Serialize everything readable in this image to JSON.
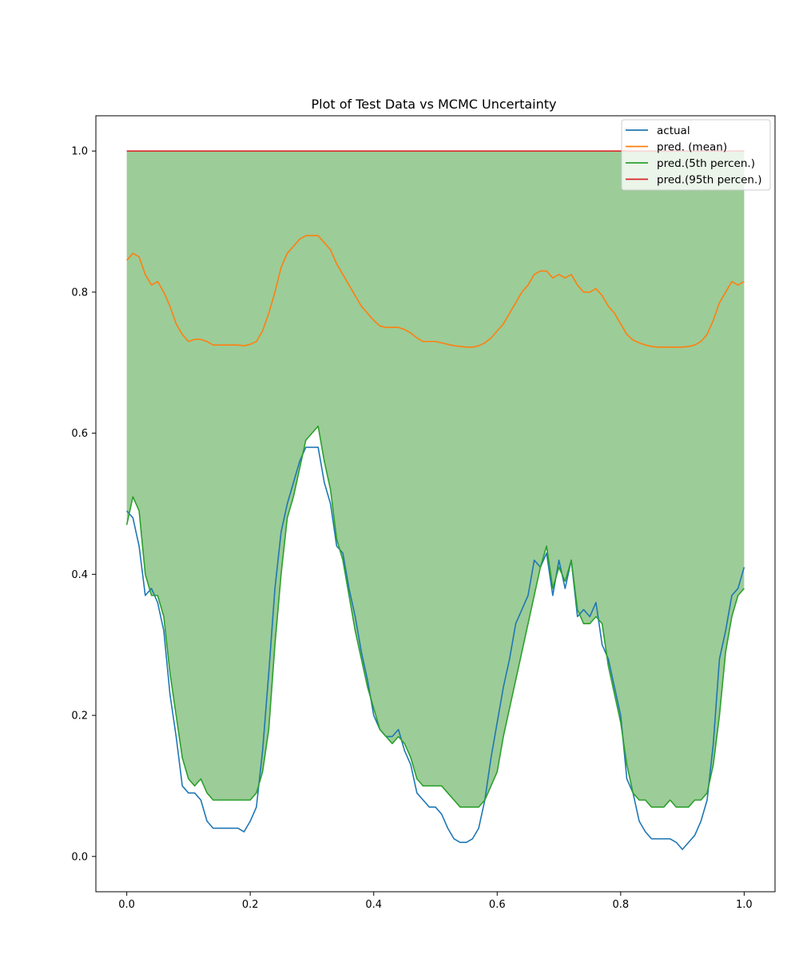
{
  "chart_data": {
    "type": "line",
    "title": "Plot of Test Data vs MCMC Uncertainty",
    "xlabel": "",
    "ylabel": "",
    "xlim": [
      -0.05,
      1.05
    ],
    "ylim": [
      -0.05,
      1.05
    ],
    "x_ticks": [
      0.0,
      0.2,
      0.4,
      0.6,
      0.8,
      1.0
    ],
    "y_ticks": [
      0.0,
      0.2,
      0.4,
      0.6,
      0.8,
      1.0
    ],
    "x_tick_labels": [
      "0.0",
      "0.2",
      "0.4",
      "0.6",
      "0.8",
      "1.0"
    ],
    "y_tick_labels": [
      "0.0",
      "0.2",
      "0.4",
      "0.6",
      "0.8",
      "1.0"
    ],
    "grid": false,
    "legend_position": "top-right",
    "fill_between": {
      "lower_series": "pred.(5th percen.)",
      "upper_series": "pred.(95th percen.)",
      "color": "#9ccc98"
    },
    "series": [
      {
        "name": "actual",
        "color": "#1f77b4",
        "x": [
          0.0,
          0.01,
          0.02,
          0.03,
          0.04,
          0.05,
          0.06,
          0.07,
          0.08,
          0.09,
          0.1,
          0.11,
          0.12,
          0.13,
          0.14,
          0.15,
          0.16,
          0.17,
          0.18,
          0.19,
          0.2,
          0.21,
          0.22,
          0.23,
          0.24,
          0.25,
          0.26,
          0.27,
          0.28,
          0.29,
          0.3,
          0.31,
          0.32,
          0.33,
          0.34,
          0.35,
          0.36,
          0.37,
          0.38,
          0.39,
          0.4,
          0.41,
          0.42,
          0.43,
          0.44,
          0.45,
          0.46,
          0.47,
          0.48,
          0.49,
          0.5,
          0.51,
          0.52,
          0.53,
          0.54,
          0.55,
          0.56,
          0.57,
          0.58,
          0.59,
          0.6,
          0.61,
          0.62,
          0.63,
          0.64,
          0.65,
          0.66,
          0.67,
          0.68,
          0.69,
          0.7,
          0.71,
          0.72,
          0.73,
          0.74,
          0.75,
          0.76,
          0.77,
          0.78,
          0.79,
          0.8,
          0.81,
          0.82,
          0.83,
          0.84,
          0.85,
          0.86,
          0.87,
          0.88,
          0.89,
          0.9,
          0.91,
          0.92,
          0.93,
          0.94,
          0.95,
          0.96,
          0.97,
          0.98,
          0.99,
          1.0
        ],
        "y": [
          0.49,
          0.48,
          0.44,
          0.37,
          0.38,
          0.36,
          0.32,
          0.23,
          0.17,
          0.1,
          0.09,
          0.09,
          0.08,
          0.05,
          0.04,
          0.04,
          0.04,
          0.04,
          0.04,
          0.035,
          0.05,
          0.07,
          0.15,
          0.26,
          0.38,
          0.46,
          0.5,
          0.53,
          0.56,
          0.58,
          0.58,
          0.58,
          0.53,
          0.5,
          0.44,
          0.43,
          0.38,
          0.34,
          0.29,
          0.25,
          0.2,
          0.18,
          0.17,
          0.17,
          0.18,
          0.15,
          0.13,
          0.09,
          0.08,
          0.07,
          0.07,
          0.06,
          0.04,
          0.025,
          0.02,
          0.02,
          0.025,
          0.04,
          0.08,
          0.14,
          0.19,
          0.24,
          0.28,
          0.33,
          0.35,
          0.37,
          0.42,
          0.41,
          0.43,
          0.37,
          0.42,
          0.38,
          0.42,
          0.34,
          0.35,
          0.34,
          0.36,
          0.3,
          0.28,
          0.24,
          0.2,
          0.11,
          0.09,
          0.05,
          0.035,
          0.025,
          0.025,
          0.025,
          0.025,
          0.02,
          0.01,
          0.02,
          0.03,
          0.05,
          0.08,
          0.16,
          0.28,
          0.32,
          0.37,
          0.38,
          0.41
        ]
      },
      {
        "name": "pred. (mean)",
        "color": "#ff7f0e",
        "x": [
          0.0,
          0.01,
          0.02,
          0.03,
          0.04,
          0.05,
          0.06,
          0.07,
          0.08,
          0.09,
          0.1,
          0.11,
          0.12,
          0.13,
          0.14,
          0.15,
          0.16,
          0.17,
          0.18,
          0.19,
          0.2,
          0.21,
          0.22,
          0.23,
          0.24,
          0.25,
          0.26,
          0.27,
          0.28,
          0.29,
          0.3,
          0.31,
          0.32,
          0.33,
          0.34,
          0.35,
          0.36,
          0.37,
          0.38,
          0.39,
          0.4,
          0.41,
          0.42,
          0.43,
          0.44,
          0.45,
          0.46,
          0.47,
          0.48,
          0.49,
          0.5,
          0.51,
          0.52,
          0.53,
          0.54,
          0.55,
          0.56,
          0.57,
          0.58,
          0.59,
          0.6,
          0.61,
          0.62,
          0.63,
          0.64,
          0.65,
          0.66,
          0.67,
          0.68,
          0.69,
          0.7,
          0.71,
          0.72,
          0.73,
          0.74,
          0.75,
          0.76,
          0.77,
          0.78,
          0.79,
          0.8,
          0.81,
          0.82,
          0.83,
          0.84,
          0.85,
          0.86,
          0.87,
          0.88,
          0.89,
          0.9,
          0.91,
          0.92,
          0.93,
          0.94,
          0.95,
          0.96,
          0.97,
          0.98,
          0.99,
          1.0
        ],
        "y": [
          0.845,
          0.855,
          0.85,
          0.825,
          0.81,
          0.815,
          0.8,
          0.78,
          0.755,
          0.74,
          0.73,
          0.733,
          0.733,
          0.73,
          0.725,
          0.725,
          0.725,
          0.725,
          0.725,
          0.724,
          0.726,
          0.73,
          0.745,
          0.77,
          0.8,
          0.835,
          0.855,
          0.865,
          0.875,
          0.88,
          0.88,
          0.88,
          0.87,
          0.86,
          0.84,
          0.825,
          0.81,
          0.795,
          0.78,
          0.77,
          0.76,
          0.752,
          0.75,
          0.75,
          0.75,
          0.747,
          0.742,
          0.735,
          0.73,
          0.73,
          0.73,
          0.728,
          0.726,
          0.724,
          0.723,
          0.722,
          0.722,
          0.724,
          0.728,
          0.735,
          0.745,
          0.755,
          0.77,
          0.785,
          0.8,
          0.81,
          0.825,
          0.83,
          0.83,
          0.82,
          0.825,
          0.82,
          0.825,
          0.81,
          0.8,
          0.8,
          0.805,
          0.795,
          0.78,
          0.77,
          0.755,
          0.74,
          0.732,
          0.728,
          0.725,
          0.723,
          0.722,
          0.722,
          0.722,
          0.722,
          0.722,
          0.723,
          0.725,
          0.73,
          0.74,
          0.76,
          0.785,
          0.8,
          0.815,
          0.81,
          0.815
        ]
      },
      {
        "name": "pred.(5th percen.)",
        "color": "#2ca02c",
        "x": [
          0.0,
          0.01,
          0.02,
          0.03,
          0.04,
          0.05,
          0.06,
          0.07,
          0.08,
          0.09,
          0.1,
          0.11,
          0.12,
          0.13,
          0.14,
          0.15,
          0.16,
          0.17,
          0.18,
          0.19,
          0.2,
          0.21,
          0.22,
          0.23,
          0.24,
          0.25,
          0.26,
          0.27,
          0.28,
          0.29,
          0.3,
          0.31,
          0.32,
          0.33,
          0.34,
          0.35,
          0.36,
          0.37,
          0.38,
          0.39,
          0.4,
          0.41,
          0.42,
          0.43,
          0.44,
          0.45,
          0.46,
          0.47,
          0.48,
          0.49,
          0.5,
          0.51,
          0.52,
          0.53,
          0.54,
          0.55,
          0.56,
          0.57,
          0.58,
          0.59,
          0.6,
          0.61,
          0.62,
          0.63,
          0.64,
          0.65,
          0.66,
          0.67,
          0.68,
          0.69,
          0.7,
          0.71,
          0.72,
          0.73,
          0.74,
          0.75,
          0.76,
          0.77,
          0.78,
          0.79,
          0.8,
          0.81,
          0.82,
          0.83,
          0.84,
          0.85,
          0.86,
          0.87,
          0.88,
          0.89,
          0.9,
          0.91,
          0.92,
          0.93,
          0.94,
          0.95,
          0.96,
          0.97,
          0.98,
          0.99,
          1.0
        ],
        "y": [
          0.47,
          0.51,
          0.49,
          0.4,
          0.37,
          0.37,
          0.34,
          0.26,
          0.2,
          0.14,
          0.11,
          0.1,
          0.11,
          0.09,
          0.08,
          0.08,
          0.08,
          0.08,
          0.08,
          0.08,
          0.08,
          0.09,
          0.12,
          0.18,
          0.3,
          0.4,
          0.48,
          0.51,
          0.55,
          0.59,
          0.6,
          0.61,
          0.56,
          0.52,
          0.45,
          0.42,
          0.37,
          0.32,
          0.28,
          0.24,
          0.21,
          0.18,
          0.17,
          0.16,
          0.17,
          0.16,
          0.14,
          0.11,
          0.1,
          0.1,
          0.1,
          0.1,
          0.09,
          0.08,
          0.07,
          0.07,
          0.07,
          0.07,
          0.08,
          0.1,
          0.12,
          0.17,
          0.21,
          0.25,
          0.29,
          0.33,
          0.37,
          0.41,
          0.44,
          0.38,
          0.41,
          0.39,
          0.42,
          0.35,
          0.33,
          0.33,
          0.34,
          0.33,
          0.27,
          0.23,
          0.19,
          0.13,
          0.09,
          0.08,
          0.08,
          0.07,
          0.07,
          0.07,
          0.08,
          0.07,
          0.07,
          0.07,
          0.08,
          0.08,
          0.09,
          0.13,
          0.2,
          0.29,
          0.34,
          0.37,
          0.38
        ]
      },
      {
        "name": "pred.(95th percen.)",
        "color": "#d62728",
        "x": [
          0.0,
          1.0
        ],
        "y": [
          1.0,
          1.0
        ]
      }
    ]
  }
}
